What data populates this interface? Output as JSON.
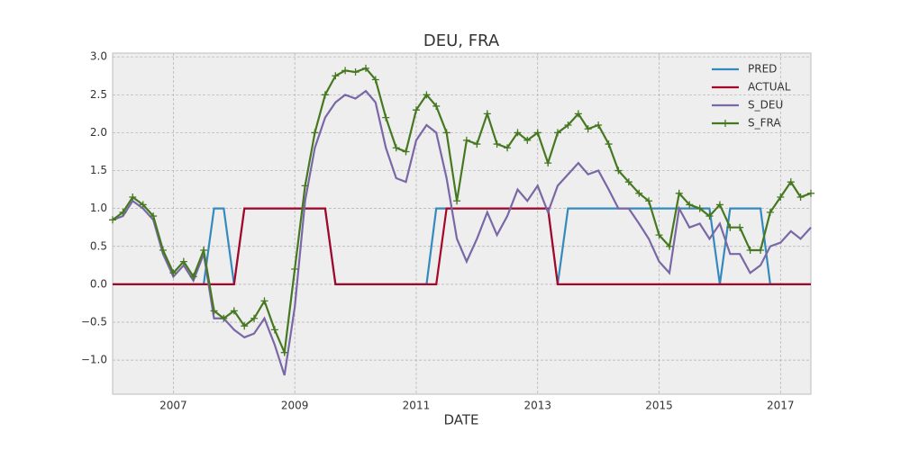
{
  "chart_data": {
    "type": "line",
    "title": "DEU, FRA",
    "x_label": "DATE",
    "x": [
      2006,
      2006.17,
      2006.33,
      2006.5,
      2006.67,
      2006.83,
      2007,
      2007.17,
      2007.33,
      2007.5,
      2007.67,
      2007.83,
      2008,
      2008.17,
      2008.33,
      2008.5,
      2008.67,
      2008.83,
      2009,
      2009.17,
      2009.33,
      2009.5,
      2009.67,
      2009.83,
      2010,
      2010.17,
      2010.33,
      2010.5,
      2010.67,
      2010.83,
      2011,
      2011.17,
      2011.33,
      2011.5,
      2011.67,
      2011.83,
      2012,
      2012.17,
      2012.33,
      2012.5,
      2012.67,
      2012.83,
      2013,
      2013.17,
      2013.33,
      2013.5,
      2013.67,
      2013.83,
      2014,
      2014.17,
      2014.33,
      2014.5,
      2014.67,
      2014.83,
      2015,
      2015.17,
      2015.33,
      2015.5,
      2015.67,
      2015.83,
      2016,
      2016.17,
      2016.33,
      2016.5,
      2016.67,
      2016.83,
      2017,
      2017.17,
      2017.33,
      2017.5
    ],
    "series": [
      {
        "name": "PRED",
        "color": "#348abd",
        "values": [
          0,
          0,
          0,
          0,
          0,
          0,
          0,
          0,
          0,
          0,
          1,
          1,
          0,
          1,
          1,
          1,
          1,
          1,
          1,
          1,
          1,
          1,
          0,
          0,
          0,
          0,
          0,
          0,
          0,
          0,
          0,
          0,
          1,
          1,
          1,
          1,
          1,
          1,
          1,
          1,
          1,
          1,
          1,
          1,
          0,
          1,
          1,
          1,
          1,
          1,
          1,
          1,
          1,
          1,
          1,
          1,
          1,
          1,
          1,
          1,
          0,
          1,
          1,
          1,
          1,
          0,
          0,
          0,
          0,
          0
        ]
      },
      {
        "name": "ACTUAL",
        "color": "#a60628",
        "values": [
          0,
          0,
          0,
          0,
          0,
          0,
          0,
          0,
          0,
          0,
          0,
          0,
          0,
          1,
          1,
          1,
          1,
          1,
          1,
          1,
          1,
          1,
          0,
          0,
          0,
          0,
          0,
          0,
          0,
          0,
          0,
          0,
          0,
          1,
          1,
          1,
          1,
          1,
          1,
          1,
          1,
          1,
          1,
          1,
          0,
          0,
          0,
          0,
          0,
          0,
          0,
          0,
          0,
          0,
          0,
          0,
          0,
          0,
          0,
          0,
          0,
          0,
          0,
          0,
          0,
          0,
          0,
          0,
          0,
          0
        ]
      },
      {
        "name": "S_DEU",
        "color": "#7a68a6",
        "values": [
          0.85,
          0.9,
          1.1,
          1.0,
          0.85,
          0.4,
          0.1,
          0.25,
          0.05,
          0.4,
          -0.45,
          -0.45,
          -0.6,
          -0.7,
          -0.65,
          -0.45,
          -0.8,
          -1.2,
          -0.3,
          1.1,
          1.8,
          2.2,
          2.4,
          2.5,
          2.45,
          2.55,
          2.4,
          1.8,
          1.4,
          1.35,
          1.9,
          2.1,
          2.0,
          1.4,
          0.6,
          0.3,
          0.6,
          0.95,
          0.65,
          0.9,
          1.25,
          1.1,
          1.3,
          0.95,
          1.3,
          1.45,
          1.6,
          1.45,
          1.5,
          1.25,
          1.0,
          1.0,
          0.8,
          0.6,
          0.3,
          0.15,
          1.0,
          0.75,
          0.8,
          0.6,
          0.8,
          0.4,
          0.4,
          0.15,
          0.25,
          0.5,
          0.55,
          0.7,
          0.6,
          0.75
        ]
      },
      {
        "name": "S_FRA",
        "color": "#467821",
        "marker": "+",
        "values": [
          0.85,
          0.95,
          1.15,
          1.05,
          0.9,
          0.45,
          0.15,
          0.3,
          0.1,
          0.45,
          -0.35,
          -0.45,
          -0.35,
          -0.55,
          -0.45,
          -0.22,
          -0.6,
          -0.9,
          0.2,
          1.3,
          2.0,
          2.5,
          2.75,
          2.82,
          2.8,
          2.85,
          2.7,
          2.2,
          1.8,
          1.75,
          2.3,
          2.5,
          2.35,
          2.0,
          1.1,
          1.9,
          1.85,
          2.25,
          1.85,
          1.8,
          2.0,
          1.9,
          2.0,
          1.6,
          2.0,
          2.1,
          2.25,
          2.05,
          2.1,
          1.85,
          1.5,
          1.35,
          1.2,
          1.1,
          0.65,
          0.5,
          1.2,
          1.05,
          1.0,
          0.9,
          1.05,
          0.75,
          0.75,
          0.45,
          0.45,
          0.95,
          1.15,
          1.35,
          1.15,
          1.2
        ]
      }
    ],
    "xlim": [
      2006,
      2017.5
    ],
    "xticks": [
      2007,
      2009,
      2011,
      2013,
      2015,
      2017
    ],
    "ylim": [
      -1.45,
      3.05
    ],
    "yticks": [
      {
        "value": -1,
        "label": "−1.0"
      },
      {
        "value": -0.5,
        "label": "−0.5"
      },
      {
        "value": 0,
        "label": "0.0"
      },
      {
        "value": 0.5,
        "label": "0.5"
      },
      {
        "value": 1,
        "label": "1.0"
      },
      {
        "value": 1.5,
        "label": "1.5"
      },
      {
        "value": 2,
        "label": "2.0"
      },
      {
        "value": 2.5,
        "label": "2.5"
      },
      {
        "value": 3,
        "label": "3.0"
      }
    ],
    "grid": true,
    "legend": "upper right"
  }
}
